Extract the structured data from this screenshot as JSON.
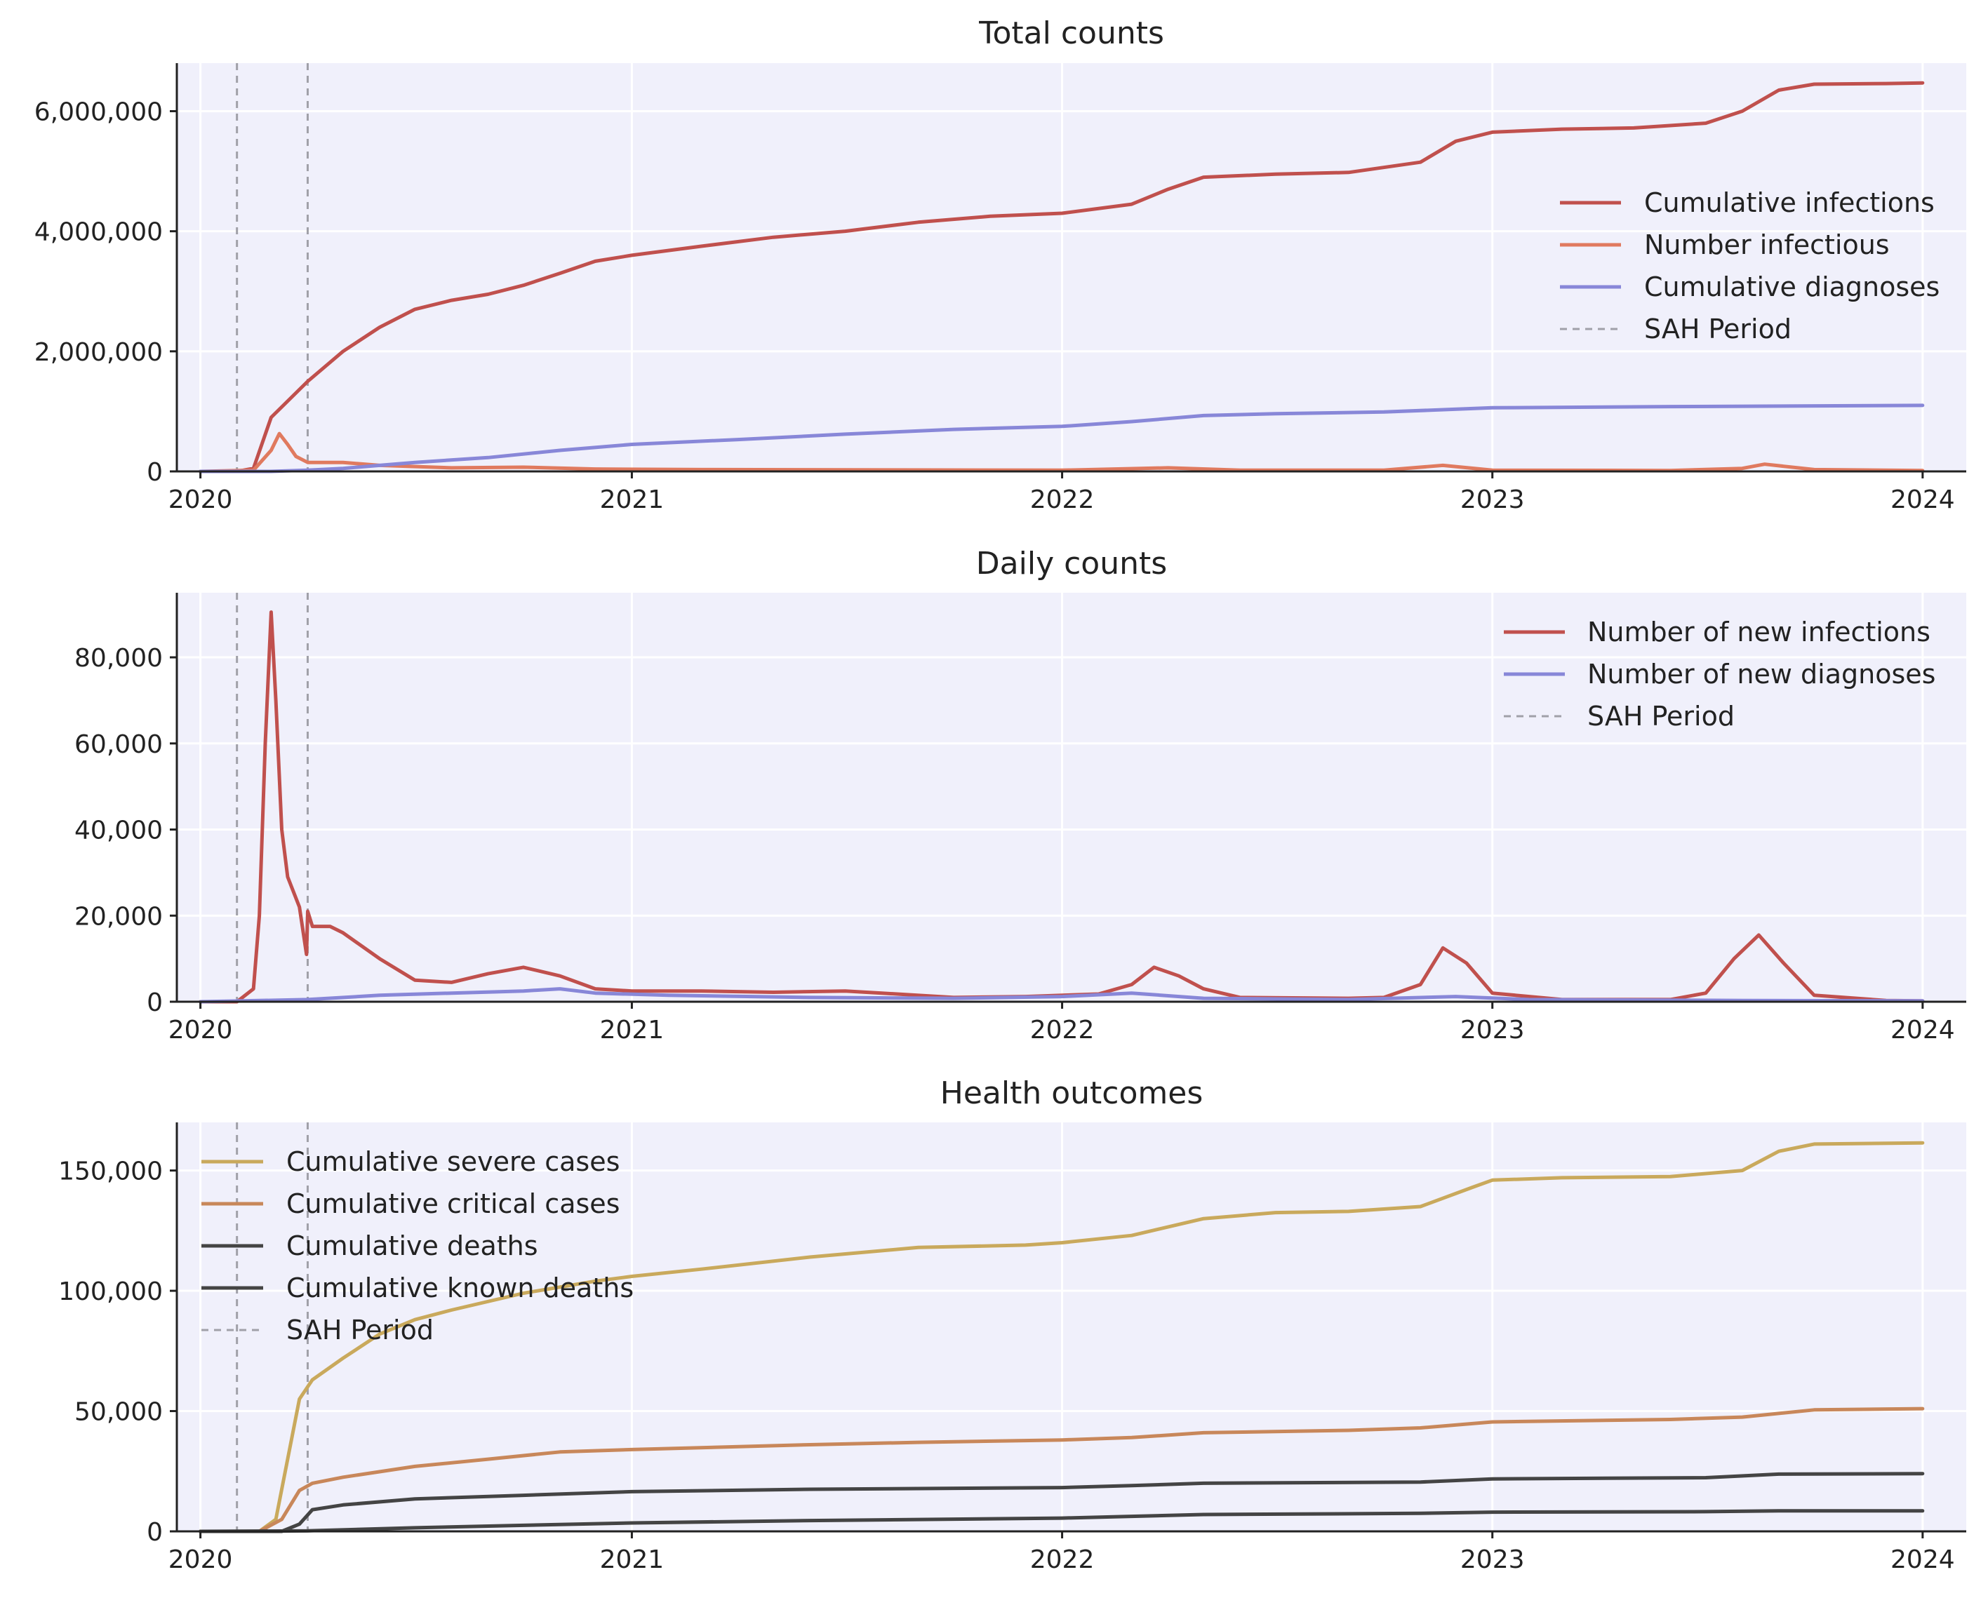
{
  "chart_data": [
    {
      "type": "line",
      "title": "Total counts",
      "xlabel": "",
      "ylabel": "",
      "x_range": [
        "2019-12-12",
        "2024-02-07"
      ],
      "x_ticks": [
        "2020",
        "2021",
        "2022",
        "2023",
        "2024"
      ],
      "ylim": [
        0,
        6800000
      ],
      "y_ticks": [
        0,
        2000000,
        4000000,
        6000000
      ],
      "y_tick_labels": [
        "0",
        "2,000,000",
        "4,000,000",
        "6,000,000"
      ],
      "grid": true,
      "legend_position": "center-right",
      "sah_period": [
        "2020-02-01",
        "2020-04-01"
      ],
      "series": [
        {
          "name": "Cumulative infections",
          "color": "#c0504d",
          "x": [
            "2020-01-01",
            "2020-02-01",
            "2020-02-15",
            "2020-03-01",
            "2020-04-01",
            "2020-05-01",
            "2020-06-01",
            "2020-07-01",
            "2020-08-01",
            "2020-09-01",
            "2020-10-01",
            "2020-11-01",
            "2020-12-01",
            "2021-01-01",
            "2021-03-01",
            "2021-05-01",
            "2021-07-01",
            "2021-09-01",
            "2021-11-01",
            "2022-01-01",
            "2022-03-01",
            "2022-04-01",
            "2022-05-01",
            "2022-07-01",
            "2022-09-01",
            "2022-11-01",
            "2022-12-01",
            "2023-01-01",
            "2023-03-01",
            "2023-05-01",
            "2023-07-01",
            "2023-08-01",
            "2023-09-01",
            "2023-10-01",
            "2023-12-01",
            "2024-01-01"
          ],
          "values": [
            0,
            0,
            50000,
            900000,
            1500000,
            2000000,
            2400000,
            2700000,
            2850000,
            2950000,
            3100000,
            3300000,
            3500000,
            3600000,
            3750000,
            3900000,
            4000000,
            4150000,
            4250000,
            4300000,
            4450000,
            4700000,
            4900000,
            4950000,
            4980000,
            5150000,
            5500000,
            5650000,
            5700000,
            5720000,
            5800000,
            6000000,
            6350000,
            6450000,
            6460000,
            6470000
          ]
        },
        {
          "name": "Number infectious",
          "color": "#e07a5f",
          "x": [
            "2020-01-01",
            "2020-02-15",
            "2020-03-01",
            "2020-03-08",
            "2020-03-15",
            "2020-03-22",
            "2020-04-01",
            "2020-05-01",
            "2020-06-01",
            "2020-08-01",
            "2020-10-01",
            "2020-12-01",
            "2021-03-01",
            "2022-01-01",
            "2022-04-01",
            "2022-06-01",
            "2022-10-01",
            "2022-11-20",
            "2023-01-01",
            "2023-06-01",
            "2023-08-01",
            "2023-08-20",
            "2023-10-01",
            "2024-01-01"
          ],
          "values": [
            0,
            20000,
            350000,
            630000,
            450000,
            250000,
            150000,
            150000,
            100000,
            60000,
            70000,
            40000,
            30000,
            20000,
            60000,
            20000,
            20000,
            100000,
            20000,
            15000,
            50000,
            120000,
            30000,
            15000
          ]
        },
        {
          "name": "Cumulative diagnoses",
          "color": "#8887d8",
          "x": [
            "2020-01-01",
            "2020-03-01",
            "2020-04-01",
            "2020-05-01",
            "2020-06-01",
            "2020-07-01",
            "2020-09-01",
            "2020-11-01",
            "2021-01-01",
            "2021-04-01",
            "2021-07-01",
            "2021-10-01",
            "2022-01-01",
            "2022-03-01",
            "2022-05-01",
            "2022-07-01",
            "2022-10-01",
            "2023-01-01",
            "2023-06-01",
            "2024-01-01"
          ],
          "values": [
            0,
            0,
            20000,
            50000,
            100000,
            150000,
            230000,
            350000,
            450000,
            530000,
            620000,
            700000,
            750000,
            830000,
            930000,
            960000,
            990000,
            1060000,
            1080000,
            1100000
          ]
        }
      ],
      "legend": [
        "Cumulative infections",
        "Number infectious",
        "Cumulative diagnoses",
        "SAH Period"
      ]
    },
    {
      "type": "line",
      "title": "Daily counts",
      "xlabel": "",
      "ylabel": "",
      "x_range": [
        "2019-12-12",
        "2024-02-07"
      ],
      "x_ticks": [
        "2020",
        "2021",
        "2022",
        "2023",
        "2024"
      ],
      "ylim": [
        0,
        95000
      ],
      "y_ticks": [
        0,
        20000,
        40000,
        60000,
        80000
      ],
      "y_tick_labels": [
        "0",
        "20,000",
        "40,000",
        "60,000",
        "80,000"
      ],
      "grid": true,
      "legend_position": "top-right",
      "sah_period": [
        "2020-02-01",
        "2020-04-01"
      ],
      "series": [
        {
          "name": "Number of new infections",
          "color": "#c0504d",
          "x": [
            "2020-01-01",
            "2020-02-01",
            "2020-02-15",
            "2020-02-20",
            "2020-02-25",
            "2020-03-01",
            "2020-03-05",
            "2020-03-10",
            "2020-03-15",
            "2020-03-25",
            "2020-03-31",
            "2020-04-01",
            "2020-04-05",
            "2020-04-20",
            "2020-05-01",
            "2020-06-01",
            "2020-07-01",
            "2020-08-01",
            "2020-09-01",
            "2020-10-01",
            "2020-11-01",
            "2020-12-01",
            "2021-01-01",
            "2021-03-01",
            "2021-05-01",
            "2021-07-01",
            "2021-08-01",
            "2021-10-01",
            "2021-12-01",
            "2022-02-01",
            "2022-03-01",
            "2022-03-20",
            "2022-04-10",
            "2022-05-01",
            "2022-06-01",
            "2022-09-01",
            "2022-10-01",
            "2022-11-01",
            "2022-11-20",
            "2022-12-10",
            "2023-01-01",
            "2023-03-01",
            "2023-06-01",
            "2023-07-01",
            "2023-07-25",
            "2023-08-15",
            "2023-09-05",
            "2023-10-01",
            "2023-12-01",
            "2024-01-01"
          ],
          "values": [
            0,
            0,
            3000,
            20000,
            60000,
            90500,
            70000,
            40000,
            29000,
            22000,
            11000,
            21000,
            17500,
            17500,
            16000,
            10000,
            5000,
            4500,
            6500,
            8000,
            6000,
            3000,
            2500,
            2500,
            2200,
            2500,
            2000,
            1000,
            1200,
            1800,
            4000,
            8000,
            6000,
            3000,
            1000,
            800,
            1000,
            4000,
            12500,
            9000,
            2000,
            500,
            500,
            2000,
            10000,
            15500,
            9000,
            1500,
            300,
            200
          ]
        },
        {
          "name": "Number of new diagnoses",
          "color": "#8887d8",
          "x": [
            "2020-01-01",
            "2020-04-01",
            "2020-06-01",
            "2020-08-01",
            "2020-10-01",
            "2020-11-01",
            "2020-12-01",
            "2021-02-01",
            "2021-06-01",
            "2021-10-01",
            "2022-01-01",
            "2022-03-01",
            "2022-05-01",
            "2022-09-01",
            "2022-12-01",
            "2023-02-01",
            "2023-08-01",
            "2024-01-01"
          ],
          "values": [
            0,
            500,
            1500,
            2000,
            2500,
            3000,
            2000,
            1500,
            1000,
            800,
            1200,
            2000,
            800,
            500,
            1200,
            500,
            300,
            200
          ]
        }
      ],
      "legend": [
        "Number of new infections",
        "Number of new diagnoses",
        "SAH Period"
      ]
    },
    {
      "type": "line",
      "title": "Health outcomes",
      "xlabel": "",
      "ylabel": "",
      "x_range": [
        "2019-12-12",
        "2024-02-07"
      ],
      "x_ticks": [
        "2020",
        "2021",
        "2022",
        "2023",
        "2024"
      ],
      "ylim": [
        0,
        170000
      ],
      "y_ticks": [
        0,
        50000,
        100000,
        150000
      ],
      "y_tick_labels": [
        "0",
        "50,000",
        "100,000",
        "150,000"
      ],
      "grid": true,
      "legend_position": "top-left",
      "sah_period": [
        "2020-02-01",
        "2020-04-01"
      ],
      "series": [
        {
          "name": "Cumulative severe cases",
          "color": "#c9a95c",
          "x": [
            "2020-01-01",
            "2020-02-20",
            "2020-03-05",
            "2020-03-15",
            "2020-03-25",
            "2020-04-05",
            "2020-05-01",
            "2020-06-01",
            "2020-07-01",
            "2020-08-01",
            "2020-10-01",
            "2020-12-01",
            "2021-01-01",
            "2021-03-01",
            "2021-06-01",
            "2021-09-01",
            "2021-12-01",
            "2022-01-01",
            "2022-03-01",
            "2022-05-01",
            "2022-07-01",
            "2022-09-01",
            "2022-11-01",
            "2022-12-15",
            "2023-01-01",
            "2023-03-01",
            "2023-06-01",
            "2023-08-01",
            "2023-09-01",
            "2023-10-01",
            "2024-01-01"
          ],
          "values": [
            0,
            0,
            5000,
            30000,
            55000,
            63000,
            72000,
            82000,
            88000,
            92000,
            99000,
            104000,
            106000,
            109000,
            114000,
            118000,
            119000,
            120000,
            123000,
            130000,
            132500,
            133000,
            135000,
            143000,
            146000,
            147000,
            147500,
            150000,
            158000,
            161000,
            161500
          ]
        },
        {
          "name": "Cumulative critical cases",
          "color": "#c8875a",
          "x": [
            "2020-01-01",
            "2020-02-20",
            "2020-03-10",
            "2020-03-25",
            "2020-04-05",
            "2020-05-01",
            "2020-07-01",
            "2020-09-01",
            "2020-11-01",
            "2021-01-01",
            "2021-06-01",
            "2021-09-01",
            "2022-01-01",
            "2022-03-01",
            "2022-05-01",
            "2022-09-01",
            "2022-11-01",
            "2023-01-01",
            "2023-06-01",
            "2023-08-01",
            "2023-10-01",
            "2024-01-01"
          ],
          "values": [
            0,
            0,
            5000,
            17000,
            20000,
            22500,
            27000,
            30000,
            33000,
            34000,
            36000,
            37000,
            38000,
            39000,
            41000,
            42000,
            43000,
            45500,
            46500,
            47500,
            50500,
            51000
          ]
        },
        {
          "name": "Cumulative deaths",
          "color": "#444444",
          "x": [
            "2020-01-01",
            "2020-03-10",
            "2020-03-25",
            "2020-04-05",
            "2020-05-01",
            "2020-07-01",
            "2020-10-01",
            "2021-01-01",
            "2021-06-01",
            "2022-01-01",
            "2022-03-01",
            "2022-05-01",
            "2022-11-01",
            "2023-01-01",
            "2023-07-01",
            "2023-09-01",
            "2024-01-01"
          ],
          "values": [
            0,
            0,
            3000,
            9000,
            11000,
            13500,
            15000,
            16500,
            17500,
            18200,
            19000,
            20000,
            20500,
            21800,
            22300,
            23800,
            24000
          ]
        },
        {
          "name": "Cumulative known deaths",
          "color": "#444444",
          "x": [
            "2020-01-01",
            "2020-04-01",
            "2020-07-01",
            "2020-10-01",
            "2021-01-01",
            "2021-06-01",
            "2022-01-01",
            "2022-05-01",
            "2022-11-01",
            "2023-01-01",
            "2023-07-01",
            "2023-09-01",
            "2024-01-01"
          ],
          "values": [
            0,
            200,
            1500,
            2500,
            3500,
            4500,
            5500,
            7000,
            7500,
            8000,
            8200,
            8500,
            8500
          ]
        }
      ],
      "legend": [
        "Cumulative severe cases",
        "Cumulative critical cases",
        "Cumulative deaths",
        "Cumulative known deaths",
        "SAH Period"
      ]
    }
  ]
}
